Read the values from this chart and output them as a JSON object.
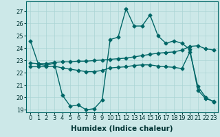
{
  "title": "",
  "xlabel": "Humidex (Indice chaleur)",
  "background_color": "#cce8e8",
  "grid_color": "#aad4d4",
  "line_color": "#006666",
  "xlim": [
    -0.5,
    23.5
  ],
  "ylim": [
    18.8,
    27.8
  ],
  "yticks": [
    19,
    20,
    21,
    22,
    23,
    24,
    25,
    26,
    27
  ],
  "xticks": [
    0,
    1,
    2,
    3,
    4,
    5,
    6,
    7,
    8,
    9,
    10,
    11,
    12,
    13,
    14,
    15,
    16,
    17,
    18,
    19,
    20,
    21,
    22,
    23
  ],
  "line1_x": [
    0,
    1,
    2,
    3,
    4,
    5,
    6,
    7,
    8,
    9,
    10,
    11,
    12,
    13,
    14,
    15,
    16,
    17,
    18,
    19,
    20,
    21,
    22,
    23
  ],
  "line1_y": [
    24.6,
    22.7,
    22.6,
    22.8,
    20.2,
    19.3,
    19.4,
    19.0,
    19.1,
    19.8,
    24.7,
    24.9,
    27.2,
    25.8,
    25.8,
    26.7,
    25.0,
    24.4,
    24.6,
    24.4,
    23.9,
    20.6,
    19.9,
    19.7
  ],
  "line2_x": [
    0,
    1,
    2,
    3,
    4,
    5,
    6,
    7,
    8,
    9,
    10,
    11,
    12,
    13,
    14,
    15,
    16,
    17,
    18,
    19,
    20,
    21,
    22,
    23
  ],
  "line2_y": [
    22.8,
    22.75,
    22.75,
    22.85,
    22.9,
    22.9,
    22.95,
    22.95,
    23.0,
    23.05,
    23.1,
    23.15,
    23.2,
    23.3,
    23.4,
    23.5,
    23.6,
    23.65,
    23.7,
    23.85,
    24.15,
    24.2,
    23.95,
    23.85
  ],
  "line3_x": [
    0,
    1,
    2,
    3,
    4,
    5,
    6,
    7,
    8,
    9,
    10,
    11,
    12,
    13,
    14,
    15,
    16,
    17,
    18,
    19,
    20,
    21,
    22,
    23
  ],
  "line3_y": [
    22.5,
    22.5,
    22.5,
    22.55,
    22.4,
    22.3,
    22.2,
    22.1,
    22.1,
    22.2,
    22.4,
    22.45,
    22.5,
    22.6,
    22.65,
    22.65,
    22.55,
    22.5,
    22.45,
    22.35,
    23.7,
    20.9,
    20.0,
    19.65
  ],
  "marker": "D",
  "markersize": 2.5,
  "linewidth": 1.0,
  "tick_fontsize": 6,
  "label_fontsize": 7.5
}
